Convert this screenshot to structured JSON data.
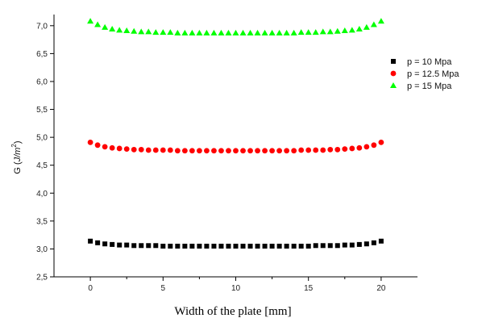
{
  "chart_data": {
    "type": "scatter",
    "title": "",
    "xlabel": "Width of the plate [mm]",
    "ylabel_main": "G (",
    "ylabel_unit": "J/m",
    "ylabel_sup": "2",
    "ylabel_close": ")",
    "xlim": [
      -2.5,
      22.5
    ],
    "ylim": [
      2.5,
      7.2
    ],
    "xticks": [
      "0",
      "5",
      "10",
      "15",
      "20"
    ],
    "yticks": [
      "2,5",
      "3,0",
      "3,5",
      "4,0",
      "4,5",
      "5,0",
      "5,5",
      "6,0",
      "6,5",
      "7,0"
    ],
    "legend_position": "top-right",
    "x": [
      0,
      0.5,
      1,
      1.5,
      2,
      2.5,
      3,
      3.5,
      4,
      4.5,
      5,
      5.5,
      6,
      6.5,
      7,
      7.5,
      8,
      8.5,
      9,
      9.5,
      10,
      10.5,
      11,
      11.5,
      12,
      12.5,
      13,
      13.5,
      14,
      14.5,
      15,
      15.5,
      16,
      16.5,
      17,
      17.5,
      18,
      18.5,
      19,
      19.5,
      20
    ],
    "series": [
      {
        "name": "p = 10 Mpa",
        "marker": "square",
        "color": "#000000",
        "values": [
          3.14,
          3.11,
          3.09,
          3.08,
          3.07,
          3.07,
          3.06,
          3.06,
          3.06,
          3.06,
          3.05,
          3.05,
          3.05,
          3.05,
          3.05,
          3.05,
          3.05,
          3.05,
          3.05,
          3.05,
          3.05,
          3.05,
          3.05,
          3.05,
          3.05,
          3.05,
          3.05,
          3.05,
          3.05,
          3.05,
          3.05,
          3.06,
          3.06,
          3.06,
          3.06,
          3.07,
          3.07,
          3.08,
          3.09,
          3.11,
          3.14
        ]
      },
      {
        "name": "p = 12.5 Mpa",
        "marker": "circle",
        "color": "#ff0000",
        "values": [
          4.91,
          4.86,
          4.83,
          4.81,
          4.8,
          4.79,
          4.78,
          4.78,
          4.77,
          4.77,
          4.77,
          4.77,
          4.76,
          4.76,
          4.76,
          4.76,
          4.76,
          4.76,
          4.76,
          4.76,
          4.76,
          4.76,
          4.76,
          4.76,
          4.76,
          4.76,
          4.76,
          4.76,
          4.76,
          4.77,
          4.77,
          4.77,
          4.77,
          4.78,
          4.78,
          4.79,
          4.8,
          4.81,
          4.83,
          4.86,
          4.91
        ]
      },
      {
        "name": "p = 15 Mpa",
        "marker": "triangle",
        "color": "#00ff00",
        "values": [
          7.08,
          7.02,
          6.97,
          6.94,
          6.92,
          6.91,
          6.9,
          6.89,
          6.89,
          6.88,
          6.88,
          6.88,
          6.87,
          6.87,
          6.87,
          6.87,
          6.87,
          6.87,
          6.87,
          6.87,
          6.87,
          6.87,
          6.87,
          6.87,
          6.87,
          6.87,
          6.87,
          6.87,
          6.87,
          6.88,
          6.88,
          6.88,
          6.89,
          6.89,
          6.9,
          6.91,
          6.92,
          6.94,
          6.97,
          7.02,
          7.08
        ]
      }
    ]
  }
}
